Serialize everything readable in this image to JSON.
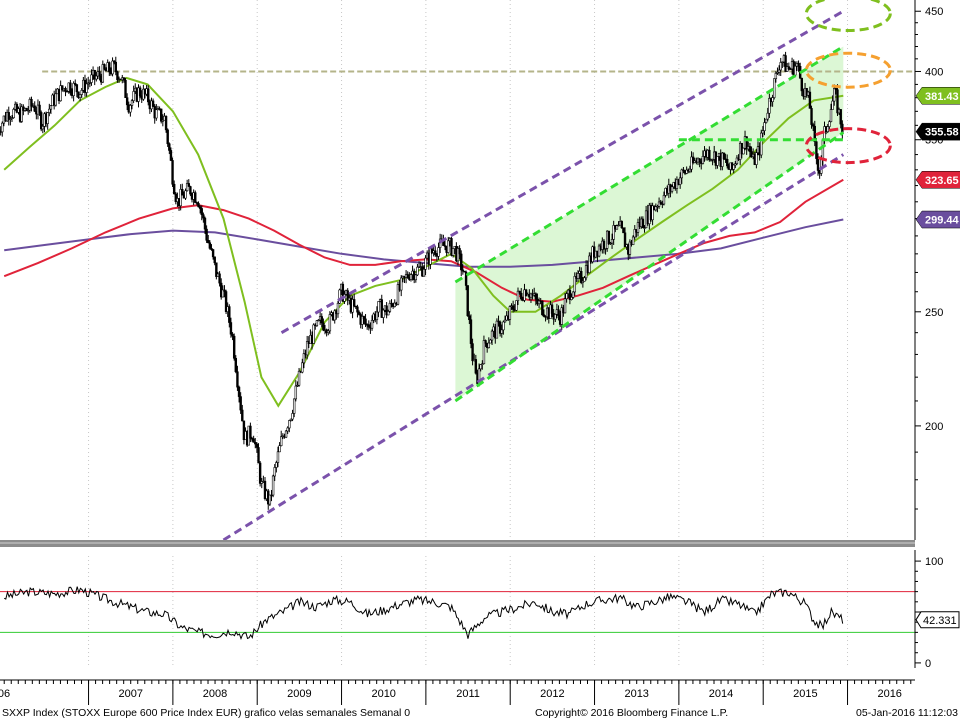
{
  "chart_data": {
    "type": "line",
    "y_scale": "log",
    "footer": {
      "left": "SXXP Index  (STOXX Europe 600 Price Index EUR) grafico velas semanales  Semanal 0",
      "center": "Copyright© 2016 Bloomberg Finance L.P.",
      "right": "05-Jan-2016 11:12:03"
    },
    "x_ticks": [
      "06",
      "2007",
      "2008",
      "2009",
      "2010",
      "2011",
      "2012",
      "2013",
      "2014",
      "2015",
      "2016"
    ],
    "price_panel": {
      "ylim": [
        160,
        460
      ],
      "y_ticks": [
        200,
        250,
        300,
        350,
        400,
        450
      ],
      "y_tick_labels": [
        "200",
        "250",
        "300",
        "350",
        "400",
        "450"
      ],
      "price_series": {
        "t": [
          2005.9,
          2006.05,
          2006.2,
          2006.35,
          2006.45,
          2006.6,
          2006.75,
          2006.9,
          2007.0,
          2007.15,
          2007.3,
          2007.38,
          2007.48,
          2007.6,
          2007.7,
          2007.8,
          2007.9,
          2008.0,
          2008.05,
          2008.2,
          2008.3,
          2008.4,
          2008.5,
          2008.6,
          2008.7,
          2008.78,
          2008.85,
          2008.95,
          2009.05,
          2009.15,
          2009.2,
          2009.3,
          2009.4,
          2009.5,
          2009.6,
          2009.75,
          2009.85,
          2010.0,
          2010.1,
          2010.3,
          2010.45,
          2010.55,
          2010.7,
          2010.8,
          2010.95,
          2011.1,
          2011.25,
          2011.35,
          2011.45,
          2011.55,
          2011.6,
          2011.7,
          2011.8,
          2011.95,
          2012.1,
          2012.2,
          2012.3,
          2012.45,
          2012.6,
          2012.7,
          2012.85,
          2013.0,
          2013.15,
          2013.3,
          2013.4,
          2013.5,
          2013.6,
          2013.75,
          2013.9,
          2014.0,
          2014.1,
          2014.25,
          2014.35,
          2014.45,
          2014.55,
          2014.62,
          2014.7,
          2014.8,
          2014.88,
          2014.95,
          2015.05,
          2015.15,
          2015.2,
          2015.3,
          2015.4,
          2015.45,
          2015.55,
          2015.62,
          2015.67,
          2015.72,
          2015.8,
          2015.85,
          2015.9,
          2015.95
        ],
        "y": [
          355,
          370,
          368,
          375,
          362,
          380,
          390,
          385,
          392,
          398,
          403,
          396,
          375,
          385,
          380,
          368,
          365,
          325,
          310,
          318,
          312,
          290,
          272,
          258,
          240,
          215,
          195,
          198,
          178,
          172,
          182,
          196,
          205,
          220,
          235,
          245,
          244,
          260,
          254,
          243,
          252,
          250,
          262,
          270,
          272,
          283,
          285,
          282,
          270,
          230,
          218,
          235,
          240,
          245,
          258,
          262,
          255,
          250,
          248,
          260,
          268,
          282,
          288,
          294,
          282,
          295,
          300,
          310,
          318,
          325,
          330,
          338,
          342,
          338,
          335,
          328,
          342,
          350,
          335,
          342,
          372,
          395,
          410,
          402,
          405,
          392,
          375,
          340,
          330,
          352,
          372,
          383,
          368,
          355.58
        ]
      },
      "sma_fast_series": {
        "t": [
          2006.0,
          2006.3,
          2006.6,
          2006.9,
          2007.2,
          2007.45,
          2007.7,
          2008.0,
          2008.3,
          2008.6,
          2008.85,
          2009.05,
          2009.25,
          2009.5,
          2009.8,
          2010.1,
          2010.4,
          2010.7,
          2011.0,
          2011.3,
          2011.55,
          2011.8,
          2012.0,
          2012.3,
          2012.6,
          2012.9,
          2013.2,
          2013.5,
          2013.8,
          2014.1,
          2014.4,
          2014.7,
          2015.0,
          2015.3,
          2015.6,
          2015.95
        ],
        "y": [
          330,
          345,
          360,
          378,
          388,
          395,
          390,
          370,
          340,
          300,
          255,
          220,
          208,
          222,
          245,
          258,
          263,
          266,
          273,
          280,
          272,
          258,
          250,
          250,
          258,
          268,
          278,
          288,
          298,
          308,
          318,
          330,
          348,
          365,
          378,
          381.43
        ]
      },
      "sma_mid_series": {
        "t": [
          2006.0,
          2006.4,
          2006.8,
          2007.2,
          2007.6,
          2008.0,
          2008.3,
          2008.6,
          2008.9,
          2009.2,
          2009.5,
          2009.8,
          2010.1,
          2010.4,
          2010.7,
          2011.0,
          2011.3,
          2011.6,
          2011.9,
          2012.2,
          2012.5,
          2012.8,
          2013.1,
          2013.4,
          2013.7,
          2014.0,
          2014.3,
          2014.6,
          2014.9,
          2015.2,
          2015.5,
          2015.95
        ],
        "y": [
          268,
          275,
          283,
          292,
          300,
          306,
          308,
          305,
          300,
          293,
          285,
          278,
          274,
          274,
          276,
          277,
          276,
          270,
          262,
          256,
          255,
          258,
          262,
          268,
          274,
          280,
          286,
          290,
          292,
          298,
          310,
          323.65
        ]
      },
      "sma_slow_series": {
        "t": [
          2006.0,
          2006.5,
          2007.0,
          2007.5,
          2008.0,
          2008.5,
          2009.0,
          2009.5,
          2010.0,
          2010.5,
          2011.0,
          2011.5,
          2012.0,
          2012.5,
          2013.0,
          2013.5,
          2014.0,
          2014.5,
          2015.0,
          2015.5,
          2015.95
        ],
        "y": [
          282,
          285,
          288,
          291,
          293,
          292,
          288,
          284,
          280,
          277,
          275,
          273,
          273,
          274,
          276,
          278,
          280,
          283,
          289,
          295,
          299.44
        ]
      },
      "last_value_tags": [
        {
          "label": "381.43",
          "value": 381.43,
          "color": "#7fbf1f"
        },
        {
          "label": "355.58",
          "value": 355.58,
          "color": "#000000"
        },
        {
          "label": "323.65",
          "value": 323.65,
          "color": "#e0233a"
        },
        {
          "label": "299.44",
          "value": 299.44,
          "color": "#6a4e9e"
        }
      ],
      "resistance_level": 400,
      "long_channel": {
        "upper": {
          "t": [
            2009.3,
            2015.95
          ],
          "y": [
            240,
            450
          ]
        },
        "lower": {
          "t": [
            2008.6,
            2015.95
          ],
          "y": [
            160,
            340
          ]
        },
        "color": "#7b52ab"
      },
      "short_channel": {
        "upper": {
          "t": [
            2011.35,
            2015.95
          ],
          "y": [
            265,
            420
          ]
        },
        "lower": {
          "t": [
            2011.35,
            2015.95
          ],
          "y": [
            210,
            355
          ]
        },
        "color": "#33dd33",
        "fill": "#dcf7d5"
      },
      "support_line": {
        "t": [
          2014.0,
          2015.95
        ],
        "y": [
          350,
          350
        ],
        "color": "#33dd33"
      },
      "ellipses": [
        {
          "t": 2015.95,
          "y": 448,
          "color": "#7fbf1f"
        },
        {
          "t": 2015.95,
          "y": 401,
          "color": "#f5a030"
        },
        {
          "t": 2015.95,
          "y": 346,
          "color": "#e0233a"
        }
      ]
    },
    "oscillator_panel": {
      "ylim": [
        -5,
        105
      ],
      "y_ticks": [
        0,
        50,
        100
      ],
      "y_tick_labels": [
        "0",
        "",
        "100"
      ],
      "upper_band": 70,
      "lower_band": 30,
      "last_value_tag": {
        "label": "42.331",
        "value": 42.331
      },
      "series": {
        "t": [
          2006.0,
          2006.3,
          2006.6,
          2006.9,
          2007.1,
          2007.3,
          2007.5,
          2007.7,
          2007.9,
          2008.1,
          2008.3,
          2008.5,
          2008.7,
          2008.9,
          2009.1,
          2009.3,
          2009.5,
          2009.7,
          2009.9,
          2010.1,
          2010.3,
          2010.5,
          2010.7,
          2010.9,
          2011.1,
          2011.3,
          2011.5,
          2011.7,
          2011.9,
          2012.1,
          2012.3,
          2012.5,
          2012.7,
          2012.9,
          2013.1,
          2013.3,
          2013.5,
          2013.7,
          2013.9,
          2014.1,
          2014.3,
          2014.5,
          2014.7,
          2014.9,
          2015.1,
          2015.3,
          2015.5,
          2015.6,
          2015.7,
          2015.8,
          2015.95
        ],
        "y": [
          65,
          70,
          68,
          72,
          66,
          60,
          55,
          50,
          48,
          35,
          30,
          28,
          32,
          25,
          42,
          50,
          60,
          55,
          62,
          60,
          48,
          52,
          58,
          62,
          60,
          55,
          28,
          45,
          50,
          55,
          60,
          50,
          48,
          58,
          62,
          64,
          55,
          60,
          65,
          60,
          50,
          62,
          58,
          48,
          68,
          70,
          58,
          42,
          35,
          50,
          42.331
        ]
      }
    }
  }
}
